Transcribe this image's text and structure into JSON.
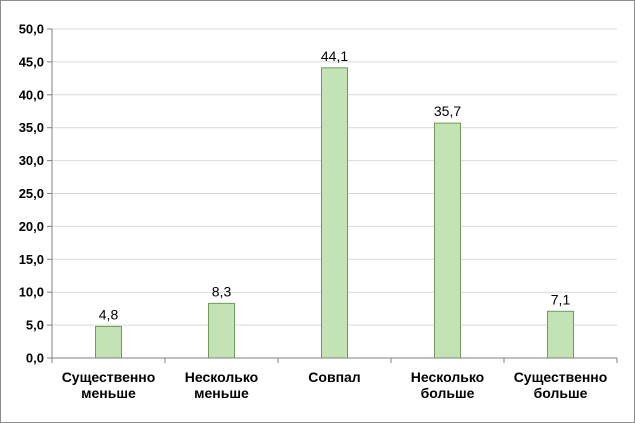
{
  "chart_data": {
    "type": "bar",
    "categories": [
      [
        "Существенно",
        "меньше"
      ],
      [
        "Несколько",
        "меньше"
      ],
      [
        "Совпал"
      ],
      [
        "Несколько",
        "больше"
      ],
      [
        "Существенно",
        "больше"
      ]
    ],
    "values": [
      4.8,
      8.3,
      44.1,
      35.7,
      7.1
    ],
    "value_labels": [
      "4,8",
      "8,3",
      "44,1",
      "35,7",
      "7,1"
    ],
    "y_ticks": [
      "0,0",
      "5,0",
      "10,0",
      "15,0",
      "20,0",
      "25,0",
      "30,0",
      "35,0",
      "40,0",
      "45,0",
      "50,0"
    ],
    "ylim": [
      0,
      50
    ],
    "y_step": 5,
    "grid": true,
    "legend": "none",
    "colors": {
      "bar_fill": "#c4e3b5",
      "bar_stroke": "#6f9a5c",
      "grid": "#d9d9d9",
      "axis": "#808080"
    }
  }
}
